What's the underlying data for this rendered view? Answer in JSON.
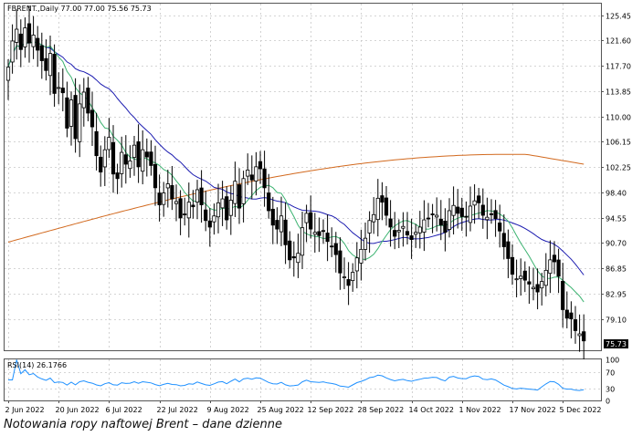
{
  "caption": "Notowania ropy naftowej Brent – dane dzienne",
  "chart_data": {
    "type": "candlestick",
    "header": "FBRENT.,Daily  77.00 77.00 75.56 75.73",
    "last_price_label": "75.73",
    "y_ticks": [
      125.45,
      121.6,
      117.7,
      113.85,
      110.0,
      106.15,
      102.25,
      98.4,
      94.55,
      90.7,
      86.85,
      82.95,
      79.1
    ],
    "y_tick_labels": [
      "125.45",
      "121.60",
      "117.70",
      "113.85",
      "110.00",
      "106.15",
      "102.25",
      "98.40",
      "94.55",
      "90.70",
      "86.85",
      "82.95",
      "79.10"
    ],
    "ylim": [
      74.3,
      127.2
    ],
    "x_ticks": [
      {
        "label": "2 Jun 2022",
        "i": 0
      },
      {
        "label": "20 Jun 2022",
        "i": 12
      },
      {
        "label": "6 Jul 2022",
        "i": 24
      },
      {
        "label": "22 Jul 2022",
        "i": 36
      },
      {
        "label": "9 Aug 2022",
        "i": 48
      },
      {
        "label": "25 Aug 2022",
        "i": 60
      },
      {
        "label": "12 Sep 2022",
        "i": 72
      },
      {
        "label": "28 Sep 2022",
        "i": 84
      },
      {
        "label": "14 Oct 2022",
        "i": 96
      },
      {
        "label": "1 Nov 2022",
        "i": 108
      },
      {
        "label": "17 Nov 2022",
        "i": 120
      },
      {
        "label": "5 Dec 2022",
        "i": 132
      }
    ],
    "close": [
      117.5,
      121.5,
      123.3,
      120.2,
      123.5,
      121.2,
      122.4,
      120.1,
      118.5,
      117.0,
      119.6,
      113.5,
      114.4,
      113.6,
      108.2,
      112.5,
      106.6,
      111.9,
      113.7,
      110.5,
      108.4,
      104.0,
      101.5,
      104.9,
      106.8,
      101.2,
      100.5,
      104.5,
      102.7,
      103.2,
      105.6,
      102.3,
      104.9,
      103.8,
      102.5,
      99.1,
      96.5,
      98.3,
      99.7,
      97.4,
      97.0,
      94.5,
      95.1,
      96.9,
      96.2,
      98.8,
      96.5,
      94.1,
      93.1,
      94.8,
      96.8,
      97.4,
      94.2,
      97.2,
      100.1,
      96.0,
      100.5,
      101.8,
      100.3,
      102.3,
      102.0,
      99.1,
      95.6,
      93.4,
      92.8,
      94.8,
      90.4,
      88.1,
      88.4,
      89.1,
      93.0,
      95.2,
      92.8,
      92.3,
      91.8,
      92.5,
      90.9,
      90.1,
      88.9,
      86.1,
      85.5,
      84.2,
      86.2,
      88.4,
      89.7,
      91.4,
      94.1,
      95.0,
      97.5,
      96.9,
      94.9,
      93.1,
      91.7,
      92.6,
      93.2,
      91.9,
      91.2,
      92.3,
      93.1,
      94.2,
      94.4,
      95.1,
      94.9,
      93.4,
      92.3,
      95.6,
      96.4,
      95.2,
      94.7,
      94.6,
      96.3,
      97.1,
      96.8,
      94.9,
      94.6,
      95.1,
      94.4,
      92.5,
      90.1,
      88.3,
      85.9,
      85.2,
      85.6,
      85.0,
      84.4,
      83.9,
      83.2,
      84.8,
      86.5,
      88.1,
      87.8,
      85.6,
      80.5,
      79.2,
      79.1,
      77.3,
      76.8,
      75.73
    ],
    "ma_fast_approx": "short moving average (green)",
    "ma_mid_approx": "medium moving average (blue)",
    "ma_slow_approx": "long moving average (orange)",
    "rsi": {
      "label": "RSI(14) 26.1766",
      "period": 14,
      "last": 26.1766,
      "ylim": [
        0,
        100
      ],
      "ticks": [
        100,
        70,
        30,
        0
      ],
      "tick_labels": [
        "100",
        "70",
        "30",
        "0"
      ]
    },
    "colors": {
      "up": "#ffffff",
      "down": "#000000",
      "wick": "#000000",
      "ma_fast": "#3cb371",
      "ma_mid": "#1c1cb0",
      "ma_slow": "#d2691e",
      "rsi": "#1e90ff",
      "grid": "#c8c8c8"
    },
    "grid": true
  }
}
